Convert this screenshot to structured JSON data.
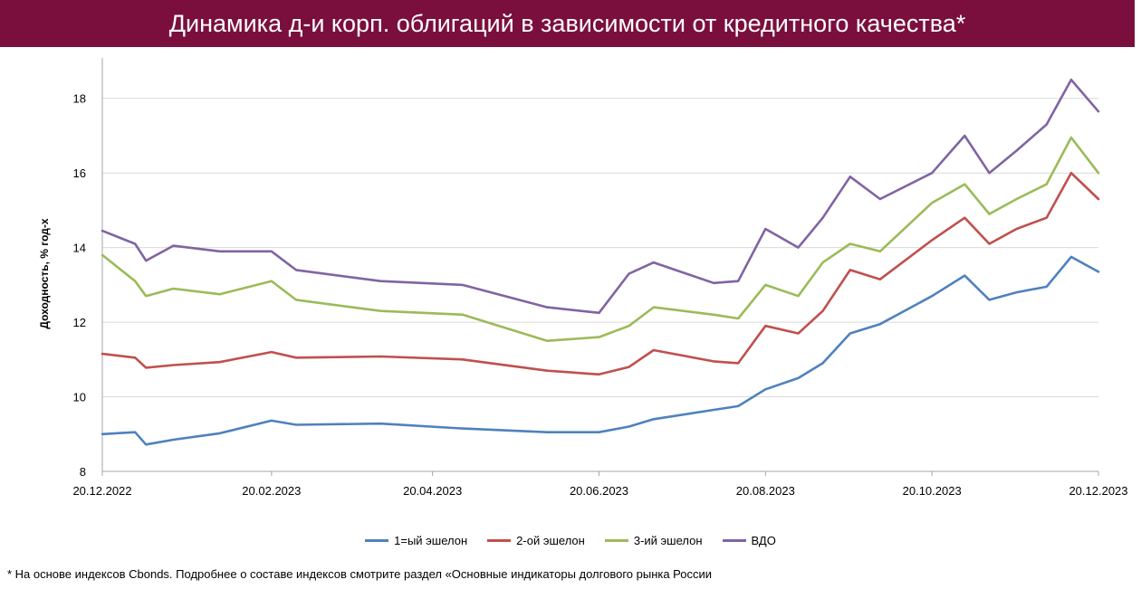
{
  "header": {
    "title": "Динамика д-и корп. облигаций в зависимости от кредитного качества*"
  },
  "footnote": "* На основе индексов Cbonds. Подробнее о составе индексов смотрите раздел «Основные индикаторы долгового рынка России",
  "chart_data": {
    "type": "line",
    "ylabel": "Доходность, % год-х",
    "ylim": [
      8,
      18.6
    ],
    "yticks": [
      "8",
      "10",
      "12",
      "14",
      "16",
      "18"
    ],
    "x_tick_labels": [
      "20.12.2022",
      "20.02.2023",
      "20.04.2023",
      "20.06.2023",
      "20.08.2023",
      "20.10.2023",
      "20.12.2023"
    ],
    "x_range": [
      "20.12.2022",
      "20.12.2023"
    ],
    "grid": "horizontal",
    "legend": "bottom",
    "series": [
      {
        "name": "1=ый эшелон",
        "color": "#4f81bd",
        "x": [
          "20.12.2022",
          "01.01.2023",
          "05.01.2023",
          "15.01.2023",
          "01.02.2023",
          "20.02.2023",
          "01.03.2023",
          "01.04.2023",
          "01.05.2023",
          "01.06.2023",
          "20.06.2023",
          "01.07.2023",
          "10.07.2023",
          "01.08.2023",
          "10.08.2023",
          "20.08.2023",
          "01.09.2023",
          "10.09.2023",
          "20.09.2023",
          "01.10.2023",
          "20.10.2023",
          "01.11.2023",
          "10.11.2023",
          "20.11.2023",
          "01.12.2023",
          "10.12.2023",
          "20.12.2023"
        ],
        "y": [
          9.0,
          9.05,
          8.72,
          8.85,
          9.02,
          9.36,
          9.25,
          9.28,
          9.15,
          9.05,
          9.05,
          9.2,
          9.4,
          9.65,
          9.75,
          10.2,
          10.5,
          10.9,
          11.7,
          11.95,
          12.7,
          13.25,
          12.6,
          12.8,
          12.95,
          13.75,
          13.35
        ]
      },
      {
        "name": "2-ой эшелон",
        "color": "#c0504d",
        "x": [
          "20.12.2022",
          "01.01.2023",
          "05.01.2023",
          "15.01.2023",
          "01.02.2023",
          "20.02.2023",
          "01.03.2023",
          "01.04.2023",
          "01.05.2023",
          "01.06.2023",
          "20.06.2023",
          "01.07.2023",
          "10.07.2023",
          "01.08.2023",
          "10.08.2023",
          "20.08.2023",
          "01.09.2023",
          "10.09.2023",
          "20.09.2023",
          "01.10.2023",
          "20.10.2023",
          "01.11.2023",
          "10.11.2023",
          "20.11.2023",
          "01.12.2023",
          "10.12.2023",
          "20.12.2023"
        ],
        "y": [
          11.15,
          11.05,
          10.78,
          10.85,
          10.93,
          11.2,
          11.05,
          11.08,
          11.0,
          10.7,
          10.6,
          10.8,
          11.25,
          10.95,
          10.9,
          11.9,
          11.7,
          12.3,
          13.4,
          13.15,
          14.2,
          14.8,
          14.1,
          14.5,
          14.8,
          16.0,
          15.3
        ]
      },
      {
        "name": "3-ий эшелон",
        "color": "#9bbb59",
        "x": [
          "20.12.2022",
          "01.01.2023",
          "05.01.2023",
          "15.01.2023",
          "01.02.2023",
          "20.02.2023",
          "01.03.2023",
          "01.04.2023",
          "01.05.2023",
          "01.06.2023",
          "20.06.2023",
          "01.07.2023",
          "10.07.2023",
          "01.08.2023",
          "10.08.2023",
          "20.08.2023",
          "01.09.2023",
          "10.09.2023",
          "20.09.2023",
          "01.10.2023",
          "20.10.2023",
          "01.11.2023",
          "10.11.2023",
          "20.11.2023",
          "01.12.2023",
          "10.12.2023",
          "20.12.2023"
        ],
        "y": [
          13.8,
          13.1,
          12.7,
          12.9,
          12.75,
          13.1,
          12.6,
          12.3,
          12.2,
          11.5,
          11.6,
          11.9,
          12.4,
          12.2,
          12.1,
          13.0,
          12.7,
          13.6,
          14.1,
          13.9,
          15.2,
          15.7,
          14.9,
          15.3,
          15.7,
          16.95,
          16.0
        ]
      },
      {
        "name": "ВДО",
        "color": "#8064a2",
        "x": [
          "20.12.2022",
          "01.01.2023",
          "05.01.2023",
          "15.01.2023",
          "01.02.2023",
          "20.02.2023",
          "01.03.2023",
          "01.04.2023",
          "01.05.2023",
          "01.06.2023",
          "20.06.2023",
          "01.07.2023",
          "10.07.2023",
          "01.08.2023",
          "10.08.2023",
          "20.08.2023",
          "01.09.2023",
          "10.09.2023",
          "20.09.2023",
          "01.10.2023",
          "20.10.2023",
          "01.11.2023",
          "10.11.2023",
          "20.11.2023",
          "01.12.2023",
          "10.12.2023",
          "20.12.2023"
        ],
        "y": [
          14.45,
          14.1,
          13.65,
          14.05,
          13.9,
          13.9,
          13.4,
          13.1,
          13.0,
          12.4,
          12.25,
          13.3,
          13.6,
          13.05,
          13.1,
          14.5,
          14.0,
          14.8,
          15.9,
          15.3,
          16.0,
          17.0,
          16.0,
          16.6,
          17.3,
          18.5,
          17.65
        ]
      }
    ]
  }
}
